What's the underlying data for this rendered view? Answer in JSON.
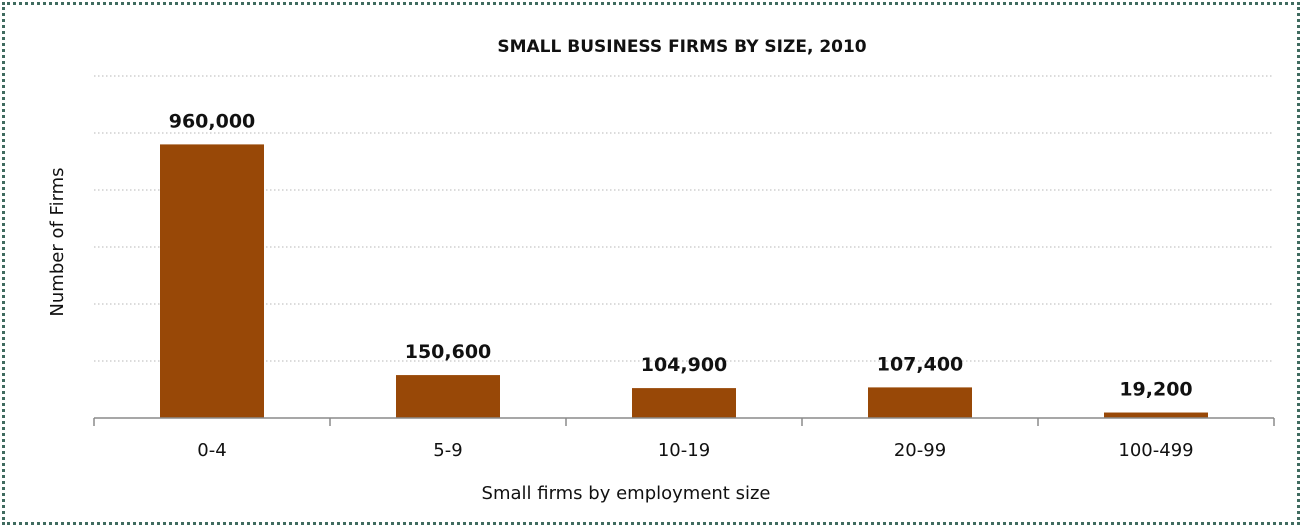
{
  "chart_data": {
    "type": "bar",
    "title": "SMALL BUSINESS FIRMS BY SIZE, 2010",
    "xlabel": "Small firms by employment size",
    "ylabel": "Number of Firms",
    "categories": [
      "0-4",
      "5-9",
      "10-19",
      "20-99",
      "100-499"
    ],
    "values": [
      960000,
      150600,
      104900,
      107400,
      19200
    ],
    "value_labels": [
      "960,000",
      "150,600",
      "104,900",
      "107,400",
      "19,200"
    ],
    "ylim": [
      0,
      1200000
    ],
    "grid": true,
    "bar_color": "#984807",
    "legend": "none"
  }
}
